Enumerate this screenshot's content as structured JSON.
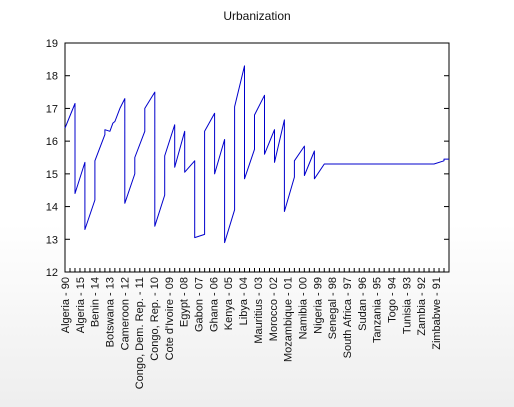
{
  "chart_data": {
    "type": "line",
    "title": "Urbanization",
    "xlabel": "",
    "ylabel": "",
    "ylim": [
      12,
      19
    ],
    "yticks": [
      12,
      13,
      14,
      15,
      16,
      17,
      18,
      19
    ],
    "grid": false,
    "legend": "none",
    "line_color": "#0000cc",
    "x_tick_labels": [
      "Algeria - 90",
      "Algeria - 15",
      "Benin - 14",
      "Botswana - 13",
      "Cameroon - 12",
      "Congo, Dem. Rep. - 11",
      "Congo, Rep. - 10",
      "Cote d'Ivoire - 09",
      "Egypt - 08",
      "Gabon - 07",
      "Ghana - 06",
      "Kenya - 05",
      "Libya - 04",
      "Mauritius - 03",
      "Morocco - 02",
      "Mozambique - 01",
      "Namibia - 00",
      "Nigeria - 99",
      "Senegal - 98",
      "South Africa - 97",
      "Sudan - 96",
      "Tanzania - 95",
      "Togo - 94",
      "Tunisia - 93",
      "Zambia - 92",
      "Zimbabwe - 91"
    ],
    "series": [
      {
        "x": [
          0,
          10,
          10,
          20,
          20,
          30,
          30,
          40,
          40,
          45,
          48,
          50,
          55,
          60,
          60,
          70,
          70,
          80,
          80,
          90,
          90,
          100,
          100,
          110,
          110,
          120,
          120,
          130,
          130,
          140,
          140,
          150,
          150,
          160,
          160,
          170,
          170,
          180,
          180,
          190,
          190,
          200,
          200,
          210,
          210,
          220,
          220,
          230,
          230,
          240,
          240,
          250,
          250,
          260,
          260,
          270,
          270,
          280,
          280,
          290,
          290,
          300,
          300,
          310,
          310,
          320,
          320,
          330,
          330,
          340,
          340,
          350,
          350,
          360,
          360,
          370,
          370,
          380,
          380,
          385
        ],
        "values": [
          16.4,
          17.15,
          14.4,
          15.35,
          13.3,
          14.2,
          15.4,
          16.2,
          16.35,
          16.3,
          16.55,
          16.6,
          17.0,
          17.3,
          14.1,
          15.0,
          15.5,
          16.3,
          17.0,
          17.5,
          13.4,
          14.35,
          15.55,
          16.5,
          15.2,
          16.3,
          15.05,
          15.4,
          13.05,
          13.15,
          16.3,
          16.85,
          15.0,
          16.05,
          12.9,
          13.9,
          17.05,
          18.3,
          14.85,
          15.75,
          16.8,
          17.4,
          15.6,
          16.35,
          15.35,
          16.65,
          13.85,
          14.9,
          15.4,
          15.85,
          14.95,
          15.7,
          14.85,
          15.3,
          15.3,
          15.3,
          15.3,
          15.3,
          15.3,
          15.3,
          15.3,
          15.3,
          15.3,
          15.3,
          15.3,
          15.3,
          15.3,
          15.3,
          15.3,
          15.3,
          15.3,
          15.3,
          15.3,
          15.3,
          15.3,
          15.3,
          15.3,
          15.4,
          15.45,
          15.45
        ]
      }
    ]
  }
}
